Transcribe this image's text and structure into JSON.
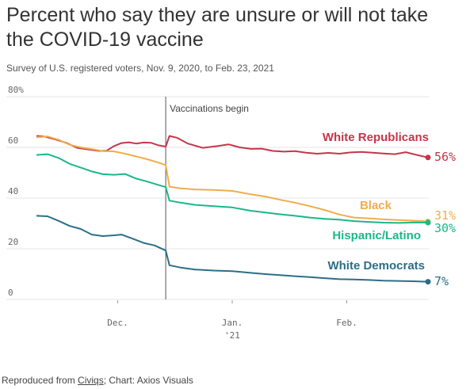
{
  "title": "Percent who say they are unsure or will not take the COVID-19 vaccine",
  "subtitle": "Survey of U.S. registered voters, Nov. 9, 2020, to Feb. 23, 2021",
  "footer": {
    "prefix": "Reproduced from ",
    "source_link": "Civiqs",
    "suffix": "; Chart: Axios Visuals"
  },
  "colors": {
    "white_republicans": "#c5364b",
    "black": "#eeae4b",
    "hispanic_latino": "#19b889",
    "white_democrats": "#2c6e87",
    "grid": "#e4e4e4",
    "axis_text": "#666666",
    "annotation_line": "#555555"
  },
  "chart_data": {
    "type": "line",
    "x_range": [
      "2020-11-09",
      "2021-02-23"
    ],
    "ylim": [
      0,
      80
    ],
    "y_ticks": [
      0,
      20,
      40,
      60,
      80
    ],
    "y_tick_labels": [
      "0",
      "20",
      "40",
      "60",
      "80%"
    ],
    "x_ticks": [
      {
        "date": "2020-12-01",
        "label": "Dec.",
        "sublabel": ""
      },
      {
        "date": "2021-01-01",
        "label": "Jan.",
        "sublabel": "'21"
      },
      {
        "date": "2021-02-01",
        "label": "Feb.",
        "sublabel": ""
      }
    ],
    "grid": true,
    "annotation": {
      "date": "2020-12-14",
      "label": "Vaccinations begin"
    },
    "series": [
      {
        "name": "White Republicans",
        "color_key": "white_republicans",
        "end_label": "56%",
        "points": [
          [
            "2020-11-09",
            64.5
          ],
          [
            "2020-11-11",
            64.3
          ],
          [
            "2020-11-14",
            63.2
          ],
          [
            "2020-11-17",
            61.8
          ],
          [
            "2020-11-20",
            59.8
          ],
          [
            "2020-11-23",
            59.2
          ],
          [
            "2020-11-26",
            58.6
          ],
          [
            "2020-11-28",
            58.7
          ],
          [
            "2020-11-30",
            60.5
          ],
          [
            "2020-12-02",
            61.7
          ],
          [
            "2020-12-04",
            62.0
          ],
          [
            "2020-12-06",
            61.5
          ],
          [
            "2020-12-08",
            61.9
          ],
          [
            "2020-12-10",
            61.8
          ],
          [
            "2020-12-12",
            60.8
          ],
          [
            "2020-12-14",
            60.3
          ],
          [
            "2020-12-15",
            64.5
          ],
          [
            "2020-12-17",
            63.8
          ],
          [
            "2020-12-20",
            61.5
          ],
          [
            "2020-12-24",
            59.8
          ],
          [
            "2020-12-28",
            60.5
          ],
          [
            "2020-12-31",
            61.2
          ],
          [
            "2021-01-03",
            60.0
          ],
          [
            "2021-01-06",
            59.4
          ],
          [
            "2021-01-09",
            59.5
          ],
          [
            "2021-01-12",
            58.6
          ],
          [
            "2021-01-15",
            58.3
          ],
          [
            "2021-01-18",
            58.5
          ],
          [
            "2021-01-21",
            57.9
          ],
          [
            "2021-01-24",
            57.5
          ],
          [
            "2021-01-27",
            57.8
          ],
          [
            "2021-01-30",
            57.5
          ],
          [
            "2021-02-02",
            58.0
          ],
          [
            "2021-02-05",
            58.2
          ],
          [
            "2021-02-08",
            57.9
          ],
          [
            "2021-02-11",
            57.6
          ],
          [
            "2021-02-14",
            57.3
          ],
          [
            "2021-02-17",
            58.1
          ],
          [
            "2021-02-20",
            57.0
          ],
          [
            "2021-02-23",
            56.0
          ]
        ]
      },
      {
        "name": "Black",
        "color_key": "black",
        "end_label": "31%",
        "points": [
          [
            "2020-11-09",
            64.0
          ],
          [
            "2020-11-12",
            64.3
          ],
          [
            "2020-11-15",
            63.0
          ],
          [
            "2020-11-18",
            61.0
          ],
          [
            "2020-11-21",
            60.0
          ],
          [
            "2020-11-24",
            59.3
          ],
          [
            "2020-11-27",
            58.5
          ],
          [
            "2020-11-30",
            58.4
          ],
          [
            "2020-12-03",
            57.5
          ],
          [
            "2020-12-06",
            56.4
          ],
          [
            "2020-12-09",
            55.3
          ],
          [
            "2020-12-12",
            54.0
          ],
          [
            "2020-12-14",
            53.0
          ],
          [
            "2020-12-15",
            44.5
          ],
          [
            "2020-12-18",
            43.8
          ],
          [
            "2020-12-22",
            43.4
          ],
          [
            "2020-12-27",
            43.2
          ],
          [
            "2021-01-01",
            42.8
          ],
          [
            "2021-01-06",
            41.5
          ],
          [
            "2021-01-10",
            40.6
          ],
          [
            "2021-01-14",
            39.3
          ],
          [
            "2021-01-18",
            38.2
          ],
          [
            "2021-01-22",
            36.8
          ],
          [
            "2021-01-26",
            35.3
          ],
          [
            "2021-01-30",
            33.5
          ],
          [
            "2021-02-03",
            32.3
          ],
          [
            "2021-02-07",
            32.0
          ],
          [
            "2021-02-11",
            31.6
          ],
          [
            "2021-02-15",
            31.3
          ],
          [
            "2021-02-19",
            31.1
          ],
          [
            "2021-02-23",
            30.8
          ]
        ]
      },
      {
        "name": "Hispanic/Latino",
        "color_key": "hispanic_latino",
        "end_label": "30%",
        "points": [
          [
            "2020-11-09",
            57.0
          ],
          [
            "2020-11-12",
            57.3
          ],
          [
            "2020-11-15",
            55.8
          ],
          [
            "2020-11-18",
            53.5
          ],
          [
            "2020-11-21",
            52.0
          ],
          [
            "2020-11-24",
            50.5
          ],
          [
            "2020-11-27",
            49.4
          ],
          [
            "2020-11-30",
            49.2
          ],
          [
            "2020-12-03",
            49.5
          ],
          [
            "2020-12-06",
            47.7
          ],
          [
            "2020-12-09",
            46.5
          ],
          [
            "2020-12-12",
            45.2
          ],
          [
            "2020-12-14",
            44.3
          ],
          [
            "2020-12-15",
            39.0
          ],
          [
            "2020-12-18",
            38.2
          ],
          [
            "2020-12-22",
            37.3
          ],
          [
            "2020-12-27",
            36.8
          ],
          [
            "2021-01-01",
            36.3
          ],
          [
            "2021-01-06",
            35.0
          ],
          [
            "2021-01-10",
            34.3
          ],
          [
            "2021-01-14",
            33.6
          ],
          [
            "2021-01-18",
            33.0
          ],
          [
            "2021-01-22",
            32.3
          ],
          [
            "2021-01-26",
            31.8
          ],
          [
            "2021-01-30",
            31.5
          ],
          [
            "2021-02-03",
            30.9
          ],
          [
            "2021-02-07",
            30.6
          ],
          [
            "2021-02-11",
            30.3
          ],
          [
            "2021-02-15",
            30.2
          ],
          [
            "2021-02-19",
            30.4
          ],
          [
            "2021-02-23",
            30.3
          ]
        ]
      },
      {
        "name": "White Democrats",
        "color_key": "white_democrats",
        "end_label": "7%",
        "points": [
          [
            "2020-11-09",
            33.0
          ],
          [
            "2020-11-12",
            32.8
          ],
          [
            "2020-11-15",
            31.0
          ],
          [
            "2020-11-18",
            29.0
          ],
          [
            "2020-11-21",
            27.8
          ],
          [
            "2020-11-24",
            25.6
          ],
          [
            "2020-11-27",
            25.0
          ],
          [
            "2020-11-30",
            25.3
          ],
          [
            "2020-12-02",
            25.6
          ],
          [
            "2020-12-05",
            24.0
          ],
          [
            "2020-12-08",
            22.3
          ],
          [
            "2020-12-11",
            21.3
          ],
          [
            "2020-12-14",
            19.3
          ],
          [
            "2020-12-15",
            13.5
          ],
          [
            "2020-12-18",
            12.6
          ],
          [
            "2020-12-22",
            11.8
          ],
          [
            "2020-12-27",
            11.4
          ],
          [
            "2021-01-01",
            11.2
          ],
          [
            "2021-01-06",
            10.5
          ],
          [
            "2021-01-10",
            10.0
          ],
          [
            "2021-01-14",
            9.6
          ],
          [
            "2021-01-18",
            9.2
          ],
          [
            "2021-01-22",
            8.8
          ],
          [
            "2021-01-26",
            8.4
          ],
          [
            "2021-01-30",
            8.0
          ],
          [
            "2021-02-03",
            7.9
          ],
          [
            "2021-02-07",
            7.7
          ],
          [
            "2021-02-11",
            7.4
          ],
          [
            "2021-02-15",
            7.3
          ],
          [
            "2021-02-19",
            7.2
          ],
          [
            "2021-02-23",
            7.0
          ]
        ]
      }
    ]
  }
}
